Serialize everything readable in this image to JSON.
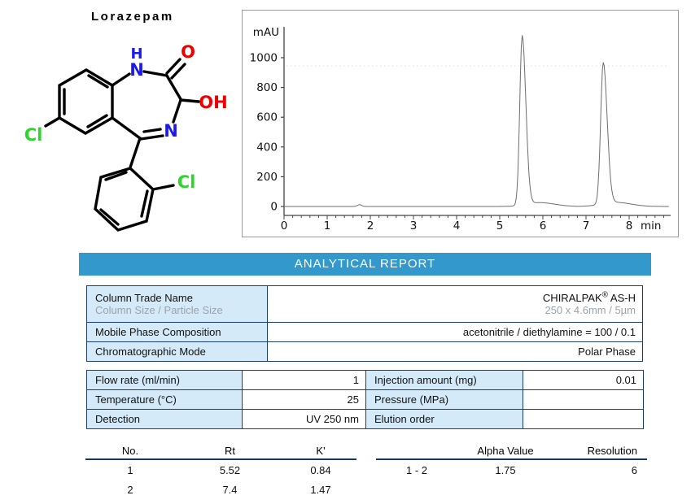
{
  "compound": {
    "name": "Lorazepam",
    "atom_labels": {
      "h": "H",
      "n1": "N",
      "o": "O",
      "oh": "OH",
      "n4": "N",
      "cl1": "Cl",
      "cl2": "Cl"
    }
  },
  "chart_data": {
    "type": "line",
    "ylabel": "mAU",
    "xlabel": "min",
    "x_ticks": [
      0,
      1,
      2,
      3,
      4,
      5,
      6,
      7,
      8
    ],
    "y_ticks": [
      0,
      200,
      400,
      600,
      800,
      1000
    ],
    "xlim": [
      0,
      8.9
    ],
    "ylim": [
      0,
      1210
    ],
    "series": [
      {
        "name": "UV 250 nm trace",
        "peaks": [
          {
            "no": 1,
            "rt_min": 5.52,
            "height_mAU": 1140
          },
          {
            "no": 2,
            "rt_min": 7.4,
            "height_mAU": 950
          }
        ],
        "minor_bump": {
          "rt_min": 1.75,
          "height_mAU": 12
        }
      }
    ],
    "reference_line_mAU": 945,
    "grid": false,
    "legend": false
  },
  "report": {
    "banner": "ANALYTICAL REPORT",
    "conditions_table": {
      "rows": [
        {
          "label": "Column Trade Name",
          "sublabel": "Column Size / Particle Size",
          "value_pre": "CHIRALPAK",
          "value_sup": "®",
          "value_post": " AS-H",
          "subvalue": "250 x 4.6mm / 5µm"
        },
        {
          "label": "Mobile Phase Composition",
          "value": "acetonitrile / diethylamine = 100 / 0.1"
        },
        {
          "label": "Chromatographic Mode",
          "value": "Polar Phase"
        }
      ]
    },
    "params_table": {
      "rows": [
        {
          "label1": "Flow rate (ml/min)",
          "value1": "1",
          "label2": "Injection amount (mg)",
          "value2": "0.01"
        },
        {
          "label1": "Temperature (°C)",
          "value1": "25",
          "label2": "Pressure (MPa)",
          "value2": ""
        },
        {
          "label1": "Detection",
          "value1": "UV 250 nm",
          "label2": "Elution order",
          "value2": ""
        }
      ]
    },
    "results_left": {
      "headers": [
        "No.",
        "Rt",
        "K'"
      ],
      "rows": [
        [
          "1",
          "5.52",
          "0.84"
        ],
        [
          "2",
          "7.4",
          "1.47"
        ]
      ]
    },
    "results_right": {
      "headers": [
        "",
        "Alpha Value",
        "Resolution"
      ],
      "rows": [
        [
          "1 - 2",
          "1.75",
          "6"
        ]
      ]
    }
  }
}
